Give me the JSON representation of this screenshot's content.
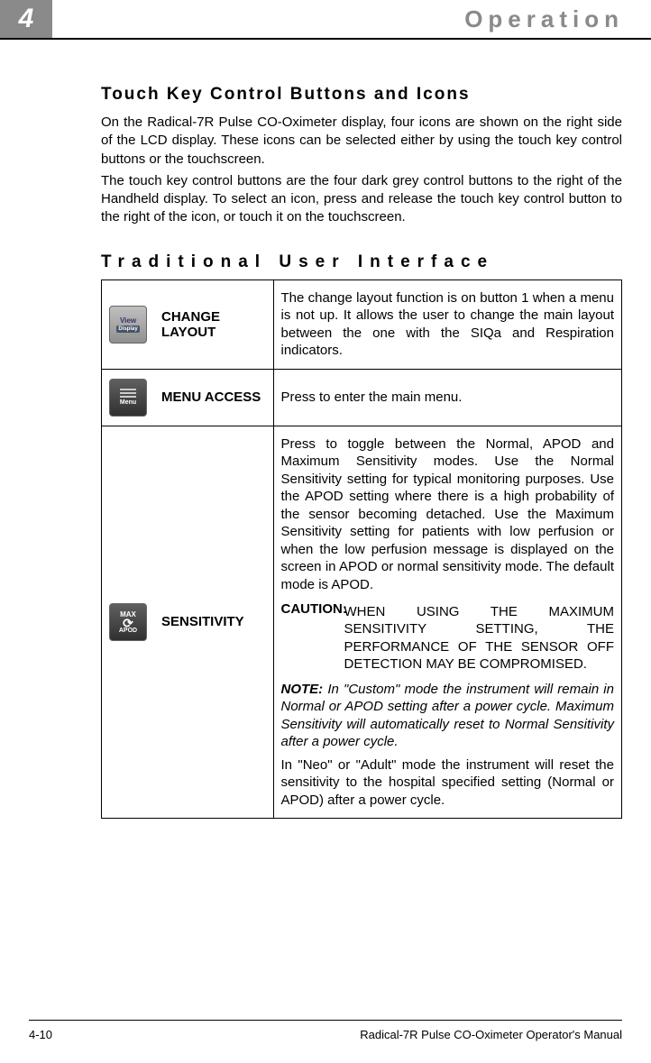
{
  "header": {
    "chapter_number": "4",
    "chapter_title": "Operation"
  },
  "section": {
    "title": "Touch Key Control Buttons and Icons",
    "para1": "On the Radical-7R Pulse CO-Oximeter display, four icons are shown on the right side of the LCD display. These icons can be selected either by using the touch key control buttons or the touchscreen.",
    "para2": "The touch key control buttons are the four dark grey control buttons to the right of the Handheld display. To select an icon, press and release the touch key control button to the right of the icon, or touch it on the touchscreen."
  },
  "subheading": "Traditional User Interface",
  "table": {
    "rows": [
      {
        "icon": {
          "name": "view-display-icon",
          "top": "View",
          "bottom": "Display"
        },
        "label": "CHANGE LAYOUT",
        "desc": "The change layout function is on button 1 when a menu is not up.  It allows the user to change the main layout between the one with the SIQa and Respiration indicators."
      },
      {
        "icon": {
          "name": "menu-icon",
          "label": "Menu"
        },
        "label": "MENU ACCESS",
        "desc": "Press to enter the main menu."
      },
      {
        "icon": {
          "name": "max-apod-icon",
          "top": "MAX",
          "bottom": "APOD"
        },
        "label": "SENSITIVITY",
        "desc_main": "Press to toggle between the Normal, APOD and Maximum Sensitivity modes. Use the Normal Sensitivity setting for typical monitoring purposes. Use the APOD setting where there is a high probability of the sensor becoming detached. Use the Maximum Sensitivity setting for patients with low perfusion or when the low perfusion message is displayed on the screen in APOD or normal sensitivity mode. The default mode is APOD.",
        "caution_label": "CAUTION:",
        "caution_body": "WHEN USING THE MAXIMUM SENSITIVITY SETTING, THE PERFORMANCE OF THE SENSOR OFF DETECTION MAY BE COMPROMISED.",
        "note_label": "NOTE:",
        "note_body": "In \"Custom\" mode the instrument will remain in Normal or APOD setting after a power cycle. Maximum Sensitivity will automatically reset to Normal Sensitivity after a power cycle.",
        "after_note": "In \"Neo\" or \"Adult\" mode the instrument will reset the sensitivity to the hospital specified setting (Normal or APOD) after a power cycle."
      }
    ]
  },
  "footer": {
    "page": "4-10",
    "manual": "Radical-7R Pulse CO-Oximeter Operator's Manual"
  }
}
